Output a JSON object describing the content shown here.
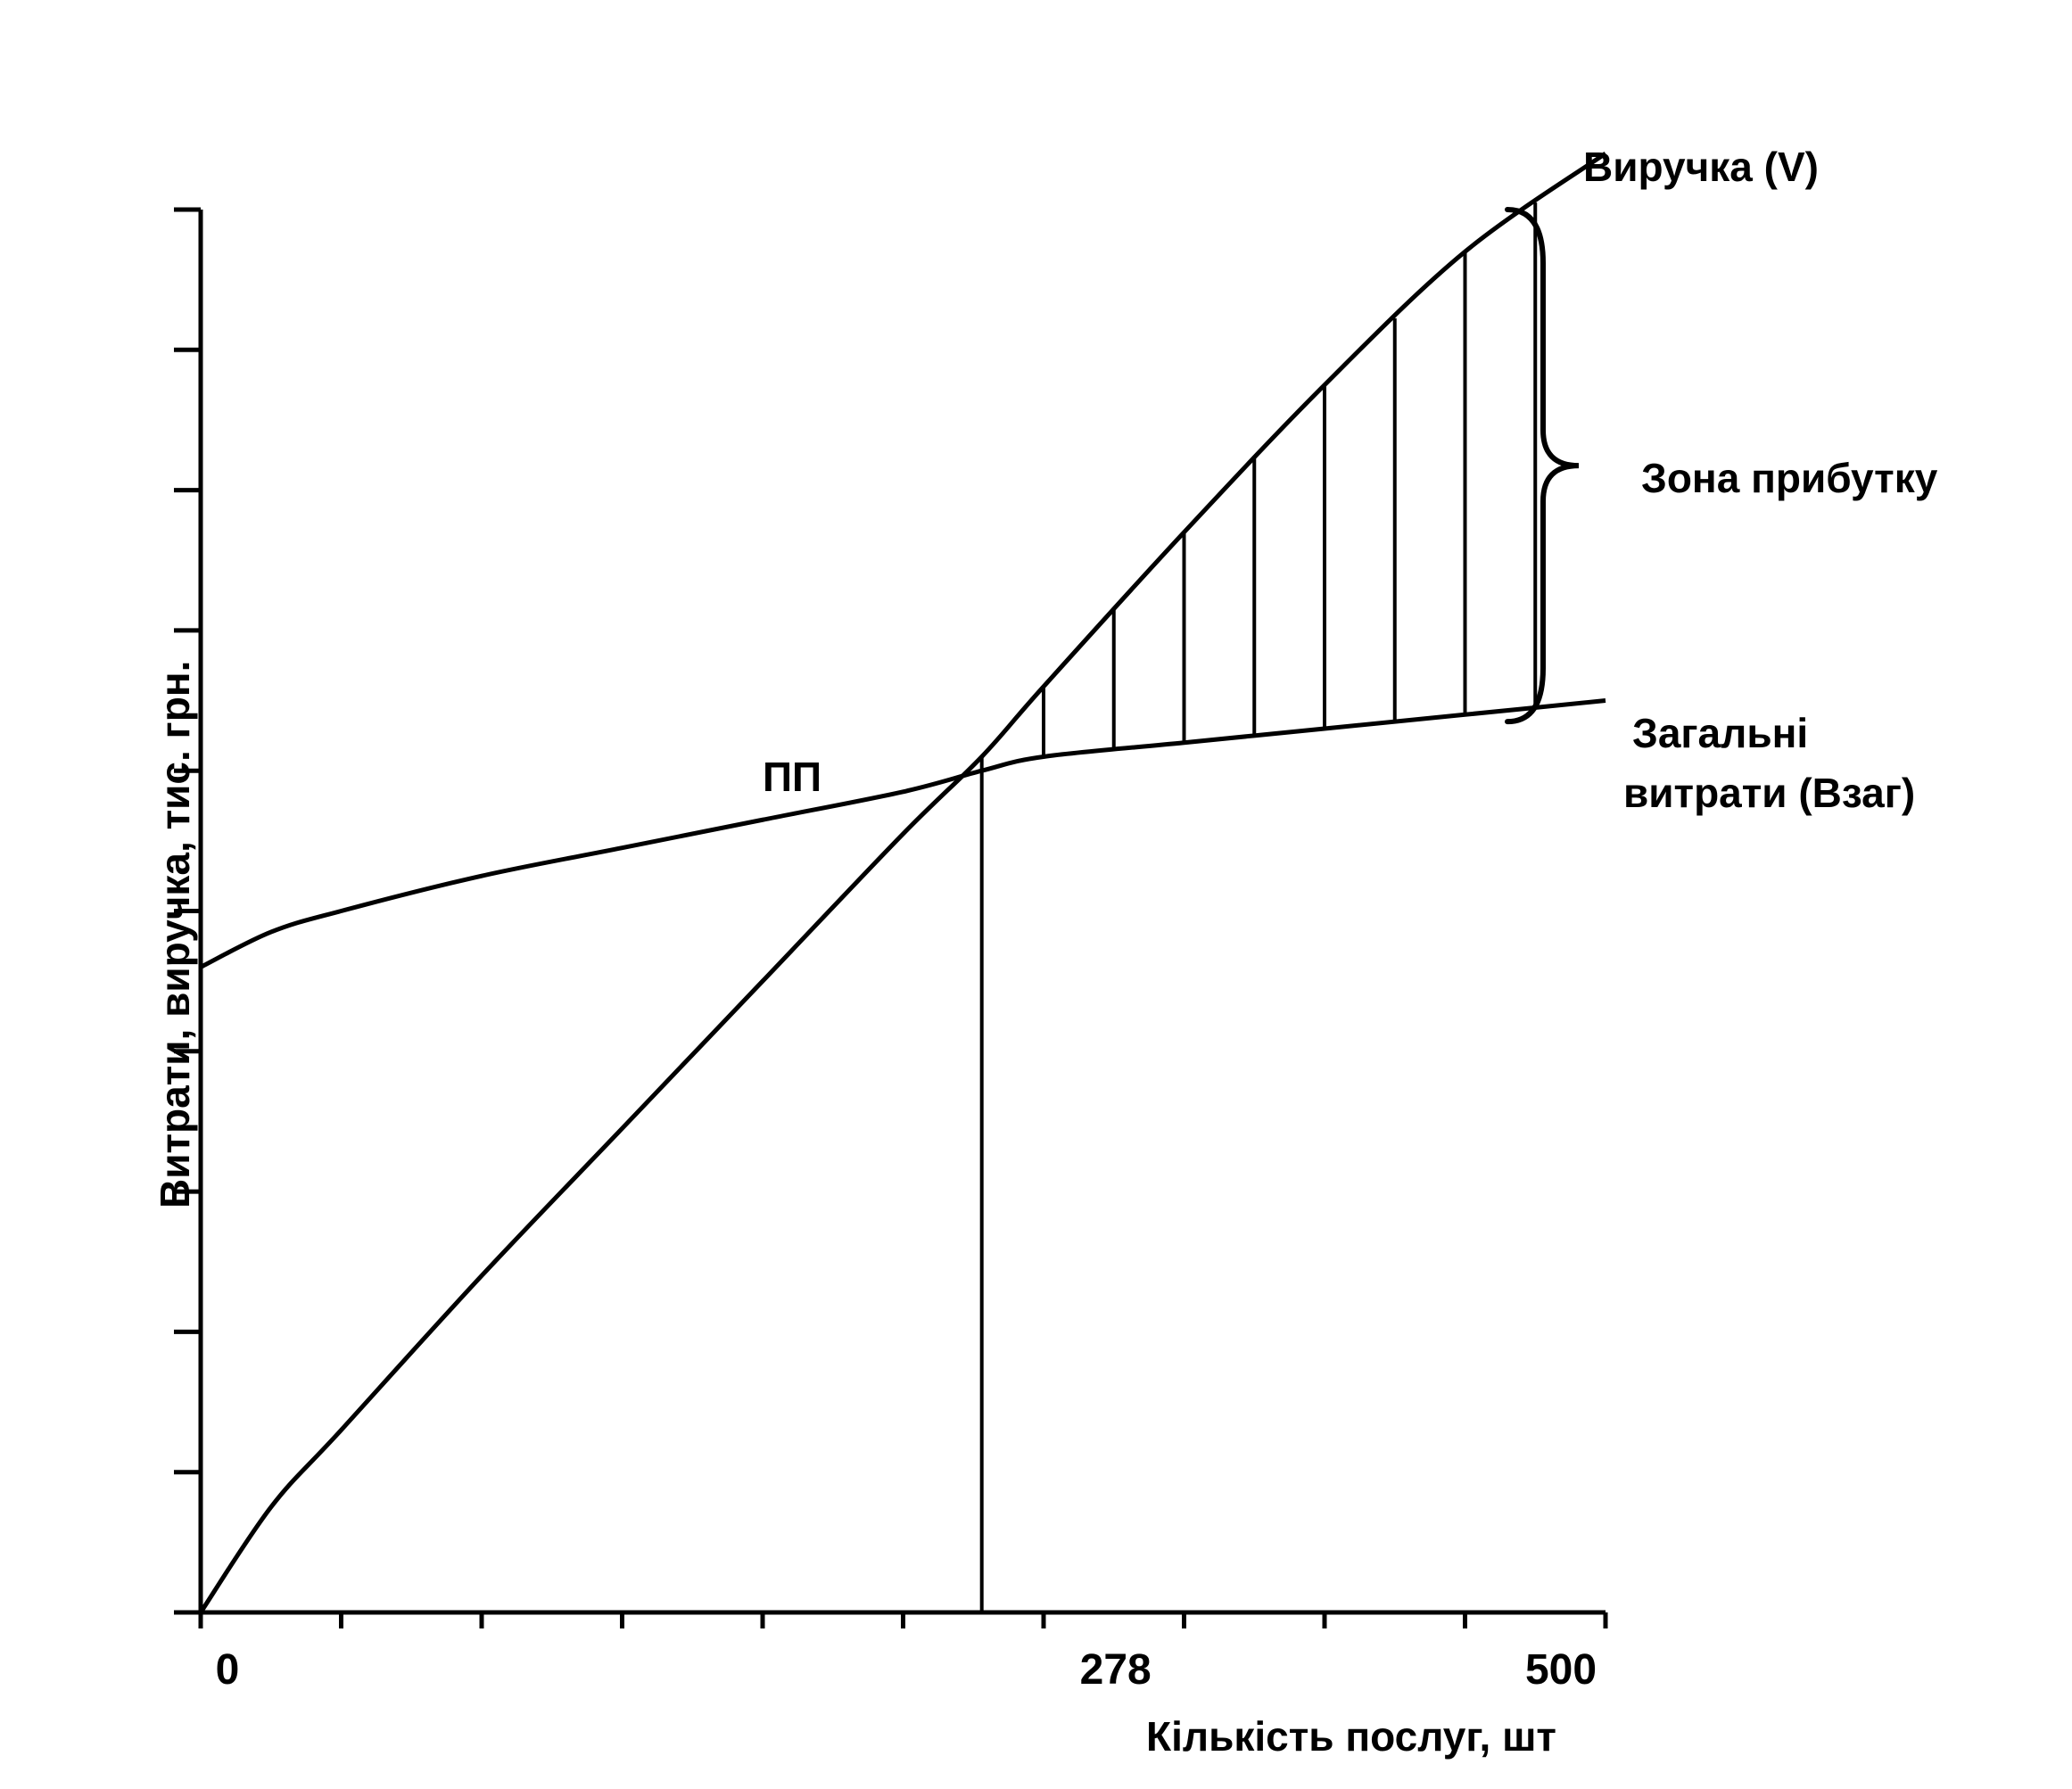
{
  "chart_data": {
    "type": "line",
    "title": "",
    "xlabel": "Кількість послуг, шт",
    "ylabel": "Витрати, виручка, тис. грн.",
    "xlim": [
      0,
      500
    ],
    "ylim": [
      0,
      10
    ],
    "x_tick_labels": [
      "0",
      "278",
      "500"
    ],
    "x_tick_count": 11,
    "y_tick_count": 11,
    "grid": false,
    "series": [
      {
        "name": "Виручка (V)",
        "x": [
          0,
          25,
          50,
          100,
          150,
          200,
          250,
          278,
          300,
          350,
          400,
          450,
          500
        ],
        "y": [
          0,
          0.75,
          1.3,
          2.4,
          3.45,
          4.5,
          5.55,
          6.1,
          6.6,
          7.7,
          8.75,
          9.7,
          10.4
        ]
      },
      {
        "name": "Загальні витрати (Взаг)",
        "x": [
          0,
          25,
          50,
          100,
          150,
          200,
          250,
          278,
          300,
          350,
          400,
          450,
          500
        ],
        "y": [
          4.6,
          4.85,
          5.0,
          5.25,
          5.45,
          5.65,
          5.85,
          6.0,
          6.1,
          6.2,
          6.3,
          6.4,
          6.5
        ]
      }
    ],
    "annotations": {
      "break_even_label": "ПП",
      "break_even_x": 278,
      "profit_zone_label": "Зона прибутку",
      "hatch_x": [
        300,
        325,
        350,
        375,
        400,
        425,
        450,
        475
      ]
    }
  }
}
